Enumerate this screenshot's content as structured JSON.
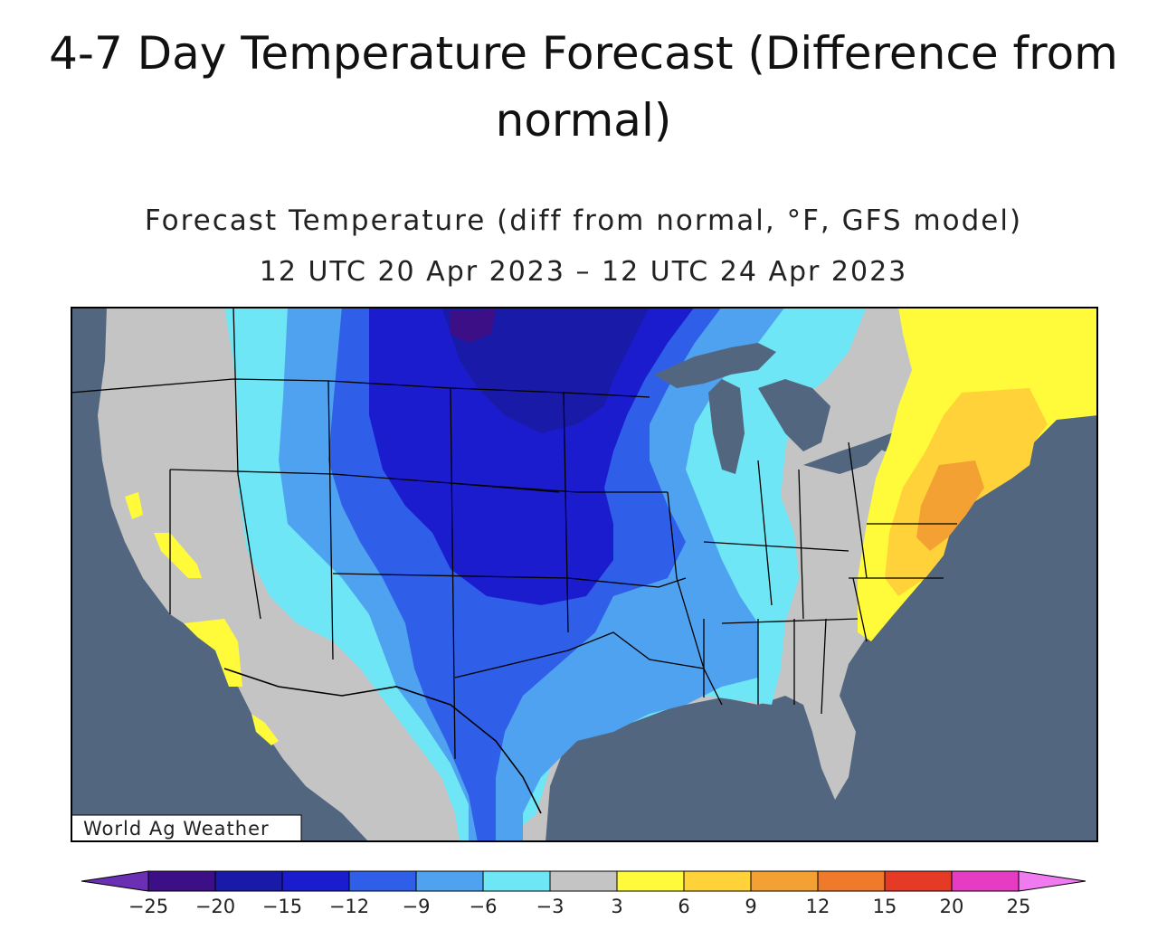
{
  "header": {
    "title": "4-7 Day Temperature Forecast (Difference from normal)"
  },
  "map": {
    "title": "Forecast Temperature (diff from normal, °F, GFS model)",
    "subtitle": "12 UTC 20 Apr 2023 – 12 UTC 24 Apr 2023",
    "credit": "World Ag Weather"
  },
  "legend": {
    "colors": [
      "#6a2fb3",
      "#3d0f86",
      "#1a1aa8",
      "#1c1ccf",
      "#2f5fe8",
      "#4fa2f0",
      "#6fe6f5",
      "#c4c4c4",
      "#fffb3a",
      "#ffd23a",
      "#f3a133",
      "#ef7a2c",
      "#e53a25",
      "#e63cc4",
      "#f07af0"
    ],
    "tick_labels": [
      "−25",
      "−20",
      "−15",
      "−12",
      "−9",
      "−6",
      "−3",
      "3",
      "6",
      "9",
      "12",
      "15",
      "20",
      "25"
    ]
  },
  "colors": {
    "ocean": "#52677f",
    "land_neutral": "#c4c4c4",
    "border": "#000000"
  }
}
